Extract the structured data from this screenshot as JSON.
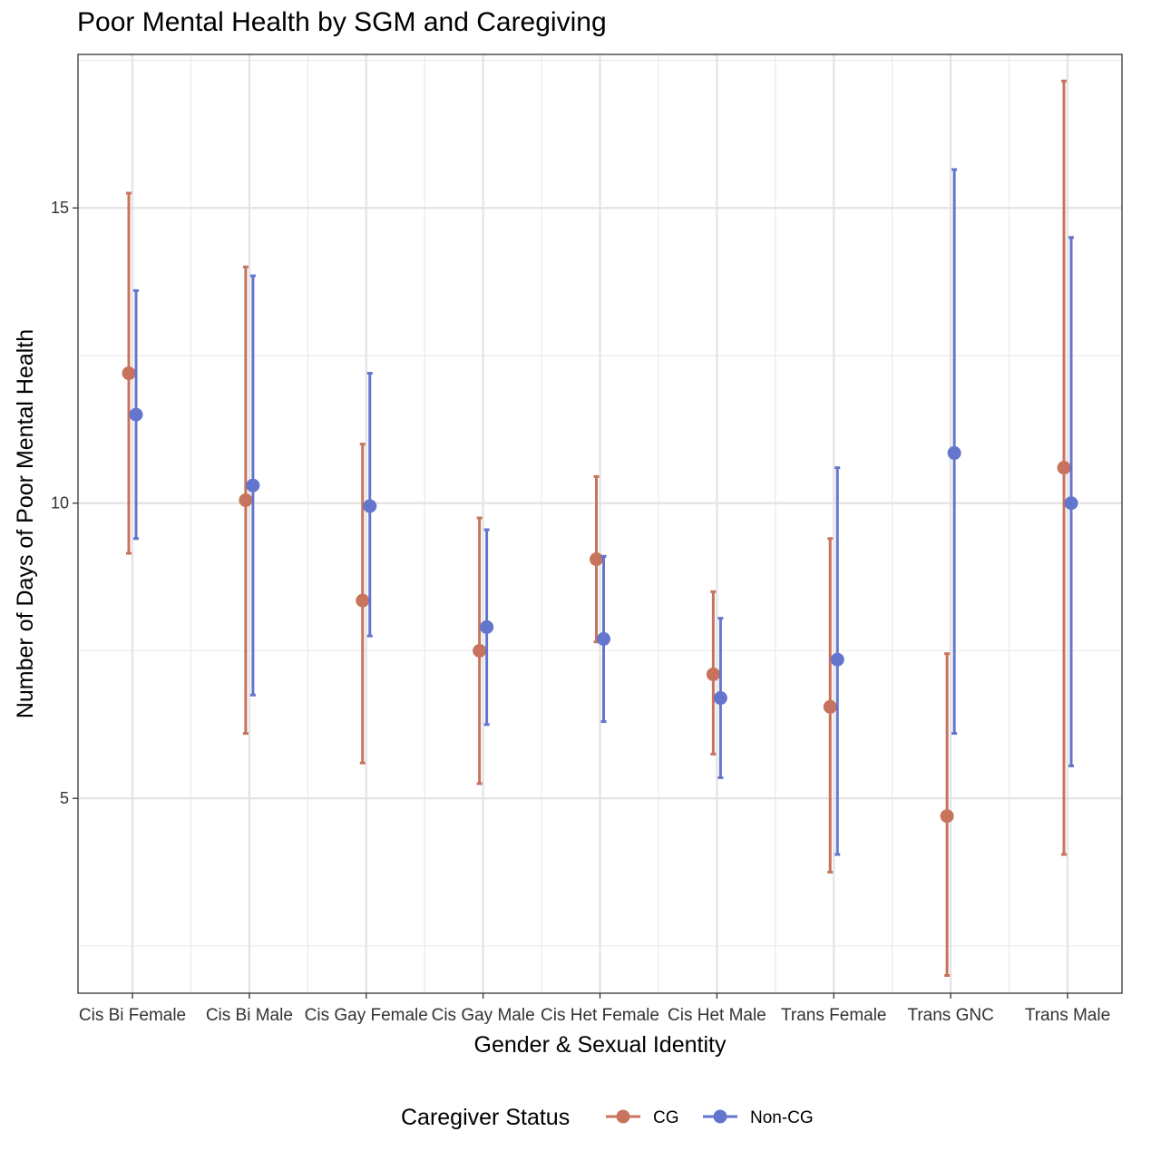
{
  "chart_data": {
    "type": "scatter",
    "subtype": "point-errorbar",
    "title": "Poor Mental Health by SGM and Caregiving",
    "xlabel": "Gender & Sexual Identity",
    "ylabel": "Number of Days of Poor Mental Health",
    "categories": [
      "Cis Bi Female",
      "Cis Bi Male",
      "Cis Gay Female",
      "Cis Gay Male",
      "Cis Het Female",
      "Cis Het Male",
      "Trans Female",
      "Trans GNC",
      "Trans Male"
    ],
    "ylim": [
      1.7,
      17.6
    ],
    "yticks": [
      5,
      10,
      15
    ],
    "grid": true,
    "legend": {
      "title": "Caregiver Status",
      "position": "bottom"
    },
    "series": [
      {
        "name": "CG",
        "color": "#C8735D",
        "values": [
          12.2,
          10.05,
          8.35,
          7.5,
          9.05,
          7.1,
          6.55,
          4.7,
          10.6
        ],
        "lower": [
          9.15,
          6.1,
          5.6,
          5.25,
          7.65,
          5.75,
          3.75,
          2.0,
          4.05
        ],
        "upper": [
          15.25,
          14.0,
          11.0,
          9.75,
          10.45,
          8.5,
          9.4,
          7.45,
          17.15
        ]
      },
      {
        "name": "Non-CG",
        "color": "#6475CE",
        "values": [
          11.5,
          10.3,
          9.95,
          7.9,
          7.7,
          6.7,
          7.35,
          10.85,
          10.0
        ],
        "lower": [
          9.4,
          6.75,
          7.75,
          6.25,
          6.3,
          5.35,
          4.05,
          6.1,
          5.55
        ],
        "upper": [
          13.6,
          13.85,
          12.2,
          9.55,
          9.1,
          8.05,
          10.6,
          15.65,
          14.5
        ]
      }
    ]
  }
}
